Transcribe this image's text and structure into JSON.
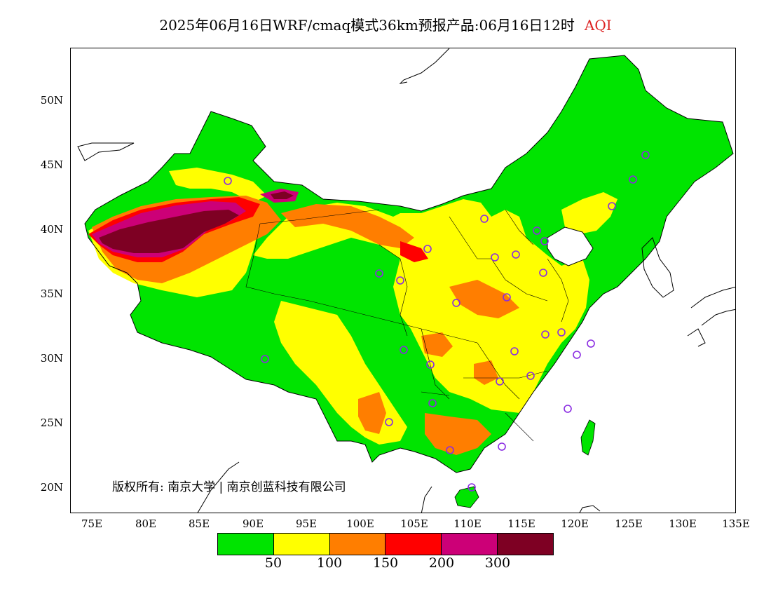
{
  "title": {
    "main": "2025年06月16日WRF/cmaq模式36km预报产品:06月16日12时",
    "variable": "AQI"
  },
  "axes": {
    "latitude_labels": [
      "50N",
      "45N",
      "40N",
      "35N",
      "30N",
      "25N",
      "20N"
    ],
    "longitude_labels": [
      "75E",
      "80E",
      "85E",
      "90E",
      "95E",
      "100E",
      "105E",
      "110E",
      "115E",
      "120E",
      "125E",
      "130E",
      "135E"
    ]
  },
  "legend": {
    "colors": [
      "#00e400",
      "#ffff00",
      "#ff7e00",
      "#ff0000",
      "#cc0077",
      "#7e0023"
    ],
    "ticks": [
      "50",
      "100",
      "150",
      "200",
      "300"
    ]
  },
  "copyright": "版权所有: 南京大学 | 南京创蓝科技有限公司",
  "colors": {
    "good": "#00e400",
    "moderate": "#ffff00",
    "usg": "#ff7e00",
    "unhealthy": "#ff0000",
    "very_unhealthy": "#cc0077",
    "hazardous": "#7e0023",
    "station_ring": "#8a2be2",
    "title_accent": "#d22222"
  }
}
